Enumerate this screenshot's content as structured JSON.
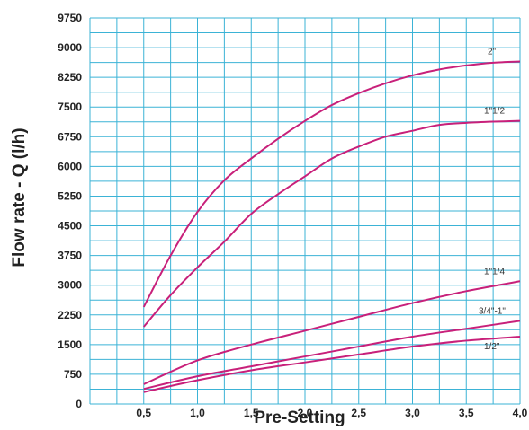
{
  "chart_data": {
    "type": "line",
    "title": "",
    "xlabel": "Pre-Setting",
    "ylabel": "Flow rate - Q (l/h)",
    "xlim": [
      0,
      4.0
    ],
    "ylim": [
      0,
      9750
    ],
    "x_ticks": [
      0.5,
      1.0,
      1.5,
      2.0,
      2.5,
      3.0,
      3.5,
      4.0
    ],
    "x_tick_labels": [
      "0,5",
      "1,0",
      "1,5",
      "2,0",
      "2,5",
      "3,0",
      "3,5",
      "4,0"
    ],
    "y_ticks": [
      0,
      750,
      1500,
      2250,
      3000,
      3750,
      4500,
      5250,
      6000,
      6750,
      7500,
      8250,
      9000,
      9750
    ],
    "y_tick_labels": [
      "0",
      "750",
      "1500",
      "2250",
      "3000",
      "3750",
      "4500",
      "5250",
      "6000",
      "6750",
      "7500",
      "8250",
      "9000",
      "9750"
    ],
    "grid": true,
    "colors": {
      "grid": "#3bb3d6",
      "series": "#c8207a",
      "text": "#222222"
    },
    "series": [
      {
        "name": "2\"",
        "x": [
          0.5,
          0.75,
          1.0,
          1.25,
          1.5,
          1.75,
          2.0,
          2.25,
          2.5,
          2.75,
          3.0,
          3.25,
          3.5,
          3.75,
          4.0
        ],
        "values": [
          2450,
          3750,
          4850,
          5650,
          6200,
          6700,
          7150,
          7550,
          7850,
          8100,
          8300,
          8450,
          8550,
          8620,
          8650
        ]
      },
      {
        "name": "1\"1/2",
        "x": [
          0.5,
          0.75,
          1.0,
          1.25,
          1.5,
          1.75,
          2.0,
          2.25,
          2.5,
          2.75,
          3.0,
          3.25,
          3.5,
          3.75,
          4.0
        ],
        "values": [
          1950,
          2750,
          3450,
          4100,
          4800,
          5300,
          5750,
          6200,
          6500,
          6750,
          6900,
          7050,
          7100,
          7130,
          7150
        ]
      },
      {
        "name": "1\"1/4",
        "x": [
          0.5,
          1.0,
          1.5,
          2.0,
          2.5,
          3.0,
          3.5,
          4.0
        ],
        "values": [
          500,
          1100,
          1500,
          1850,
          2200,
          2550,
          2850,
          3100
        ]
      },
      {
        "name": "3/4\"-1\"",
        "x": [
          0.5,
          1.0,
          1.5,
          2.0,
          2.5,
          3.0,
          3.5,
          4.0
        ],
        "values": [
          380,
          700,
          950,
          1200,
          1450,
          1700,
          1900,
          2100
        ]
      },
      {
        "name": "1/2\"",
        "x": [
          0.5,
          1.0,
          1.5,
          2.0,
          2.5,
          3.0,
          3.5,
          4.0
        ],
        "values": [
          300,
          600,
          850,
          1050,
          1250,
          1450,
          1600,
          1700
        ]
      }
    ]
  }
}
